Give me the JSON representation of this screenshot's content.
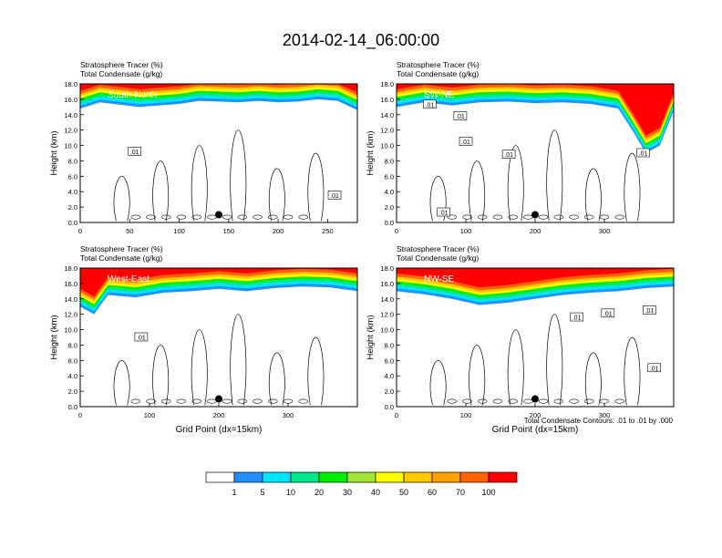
{
  "page": {
    "title": "2014-02-14_06:00:00",
    "contour_note": "Total Condensate Contours: .01 to .01 by .000"
  },
  "colorbar": {
    "labels": [
      "1",
      "5",
      "10",
      "20",
      "30",
      "40",
      "50",
      "60",
      "70",
      "100"
    ],
    "colors": [
      "#ffffff",
      "#1e90ff",
      "#00e5ff",
      "#00e68a",
      "#00ee00",
      "#a0e632",
      "#ffff00",
      "#ffc800",
      "#ffa000",
      "#ff6400",
      "#ff0000"
    ]
  },
  "chart_data": [
    {
      "type": "contour",
      "name": "South-North",
      "header": [
        "Stratosphere Tracer   (%)",
        "Total Condensate   (g/kg)"
      ],
      "ylabel": "Height (km)",
      "xlabel": "",
      "xticks": [
        "0",
        "50",
        "100",
        "150",
        "200",
        "250"
      ],
      "xtick_values": [
        0,
        50,
        100,
        150,
        200,
        250
      ],
      "xlim": [
        0,
        280
      ],
      "yticks": [
        "0.0",
        "2.0",
        "4.0",
        "6.0",
        "8.0",
        "10.0",
        "12.0",
        "14.0",
        "16.0",
        "18.0"
      ],
      "ylim": [
        0,
        18
      ],
      "contour_labels": [
        ".01",
        ".01"
      ],
      "contour_label_pos": [
        [
          55,
          9.2
        ],
        [
          257,
          3.5
        ]
      ],
      "marker": {
        "x": 140,
        "y": 1.0
      },
      "tropopause": [
        [
          0,
          14.8
        ],
        [
          20,
          15.6
        ],
        [
          40,
          15.3
        ],
        [
          60,
          15.0
        ],
        [
          80,
          15.2
        ],
        [
          100,
          15.4
        ],
        [
          120,
          15.8
        ],
        [
          140,
          15.7
        ],
        [
          160,
          15.6
        ],
        [
          180,
          15.8
        ],
        [
          200,
          15.6
        ],
        [
          220,
          15.7
        ],
        [
          240,
          16.0
        ],
        [
          260,
          15.8
        ],
        [
          280,
          14.6
        ]
      ]
    },
    {
      "type": "contour",
      "name": "SW-NE",
      "header": [
        "Stratosphere Tracer   (%)",
        "Total Condensate   (g/kg)"
      ],
      "ylabel": "Height (km)",
      "xlabel": "",
      "xticks": [
        "0",
        "100",
        "200",
        "300"
      ],
      "xtick_values": [
        0,
        100,
        200,
        300
      ],
      "xlim": [
        0,
        400
      ],
      "yticks": [
        "0.0",
        "2.0",
        "4.0",
        "6.0",
        "8.0",
        "10.0",
        "12.0",
        "14.0",
        "16.0",
        "18.0"
      ],
      "ylim": [
        0,
        18
      ],
      "contour_labels": [
        ".01",
        ".01",
        ".01",
        ".01",
        ".01",
        ".01"
      ],
      "contour_label_pos": [
        [
          48,
          15.3
        ],
        [
          92,
          13.8
        ],
        [
          100,
          10.5
        ],
        [
          162,
          8.8
        ],
        [
          68,
          1.3
        ],
        [
          356,
          9.0
        ]
      ],
      "marker": {
        "x": 200,
        "y": 1.0
      },
      "tropopause": [
        [
          0,
          15.0
        ],
        [
          40,
          15.6
        ],
        [
          80,
          15.2
        ],
        [
          120,
          15.6
        ],
        [
          160,
          15.7
        ],
        [
          200,
          15.5
        ],
        [
          240,
          15.6
        ],
        [
          280,
          15.4
        ],
        [
          320,
          14.8
        ],
        [
          340,
          12.0
        ],
        [
          360,
          9.0
        ],
        [
          380,
          10.0
        ],
        [
          400,
          14.5
        ]
      ]
    },
    {
      "type": "contour",
      "name": "West-East",
      "header": [
        "Stratosphere Tracer   (%)",
        "Total Condensate   (g/kg)"
      ],
      "ylabel": "Height (km)",
      "xlabel": "Grid Point (dx=15km)",
      "xticks": [
        "0",
        "100",
        "200",
        "300"
      ],
      "xtick_values": [
        0,
        100,
        200,
        300
      ],
      "xlim": [
        0,
        400
      ],
      "yticks": [
        "0.0",
        "2.0",
        "4.0",
        "6.0",
        "8.0",
        "10.0",
        "12.0",
        "14.0",
        "16.0",
        "18.0"
      ],
      "ylim": [
        0,
        18
      ],
      "contour_labels": [
        ".01"
      ],
      "contour_label_pos": [
        [
          88,
          9.0
        ]
      ],
      "marker": {
        "x": 200,
        "y": 1.0
      },
      "tropopause": [
        [
          0,
          13.0
        ],
        [
          20,
          12.0
        ],
        [
          40,
          14.5
        ],
        [
          80,
          14.2
        ],
        [
          120,
          14.8
        ],
        [
          160,
          15.0
        ],
        [
          200,
          15.3
        ],
        [
          240,
          15.0
        ],
        [
          280,
          15.4
        ],
        [
          320,
          15.6
        ],
        [
          360,
          15.5
        ],
        [
          400,
          15.0
        ]
      ]
    },
    {
      "type": "contour",
      "name": "NW-SE",
      "header": [
        "Stratosphere Tracer   (%)",
        "Total Condensate   (g/kg)"
      ],
      "ylabel": "Height (km)",
      "xlabel": "Grid Point (dx=15km)",
      "xticks": [
        "0",
        "100",
        "200",
        "300"
      ],
      "xtick_values": [
        0,
        100,
        200,
        300
      ],
      "xlim": [
        0,
        400
      ],
      "yticks": [
        "0.0",
        "2.0",
        "4.0",
        "6.0",
        "8.0",
        "10.0",
        "12.0",
        "14.0",
        "16.0",
        "18.0"
      ],
      "ylim": [
        0,
        18
      ],
      "contour_labels": [
        ".01",
        ".01",
        ".01",
        ".01"
      ],
      "contour_label_pos": [
        [
          260,
          11.6
        ],
        [
          305,
          12.1
        ],
        [
          365,
          12.5
        ],
        [
          372,
          5.0
        ]
      ],
      "marker": {
        "x": 200,
        "y": 1.0
      },
      "tropopause": [
        [
          0,
          15.0
        ],
        [
          40,
          14.6
        ],
        [
          80,
          14.0
        ],
        [
          120,
          13.2
        ],
        [
          160,
          13.5
        ],
        [
          200,
          14.0
        ],
        [
          240,
          14.5
        ],
        [
          280,
          14.8
        ],
        [
          320,
          15.0
        ],
        [
          360,
          15.4
        ],
        [
          400,
          15.6
        ]
      ]
    }
  ]
}
